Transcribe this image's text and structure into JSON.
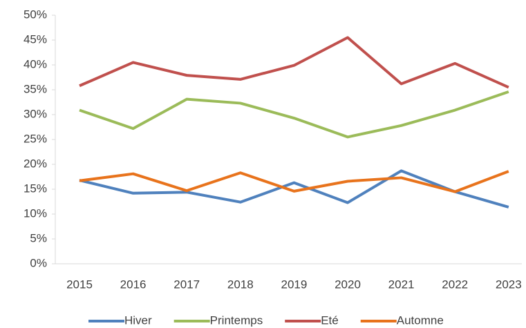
{
  "chart_data": {
    "type": "line",
    "categories": [
      "2015",
      "2016",
      "2017",
      "2018",
      "2019",
      "2020",
      "2021",
      "2022",
      "2023"
    ],
    "series": [
      {
        "name": "Hiver",
        "color": "#4f81bd",
        "values": [
          16.8,
          14.2,
          14.4,
          12.4,
          16.3,
          12.3,
          18.7,
          14.5,
          11.4
        ]
      },
      {
        "name": "Printemps",
        "color": "#9bbb59",
        "values": [
          30.9,
          27.2,
          33.1,
          32.3,
          29.3,
          25.5,
          27.8,
          30.9,
          34.6
        ]
      },
      {
        "name": "Eté",
        "color": "#c0504d",
        "values": [
          35.8,
          40.5,
          37.9,
          37.1,
          39.9,
          45.5,
          36.2,
          40.3,
          35.5
        ]
      },
      {
        "name": "Automne",
        "color": "#e8731c",
        "values": [
          16.7,
          18.1,
          14.7,
          18.3,
          14.6,
          16.6,
          17.3,
          14.5,
          18.6
        ]
      }
    ],
    "ylim": [
      0,
      50
    ],
    "yticks": [
      {
        "value": 0,
        "label": "0%"
      },
      {
        "value": 5,
        "label": "5%"
      },
      {
        "value": 10,
        "label": "10%"
      },
      {
        "value": 15,
        "label": "15%"
      },
      {
        "value": 20,
        "label": "20%"
      },
      {
        "value": 25,
        "label": "25%"
      },
      {
        "value": 30,
        "label": "30%"
      },
      {
        "value": 35,
        "label": "35%"
      },
      {
        "value": 40,
        "label": "40%"
      },
      {
        "value": 45,
        "label": "45%"
      },
      {
        "value": 50,
        "label": "50%"
      }
    ],
    "grid": false,
    "legend": "bottom"
  }
}
